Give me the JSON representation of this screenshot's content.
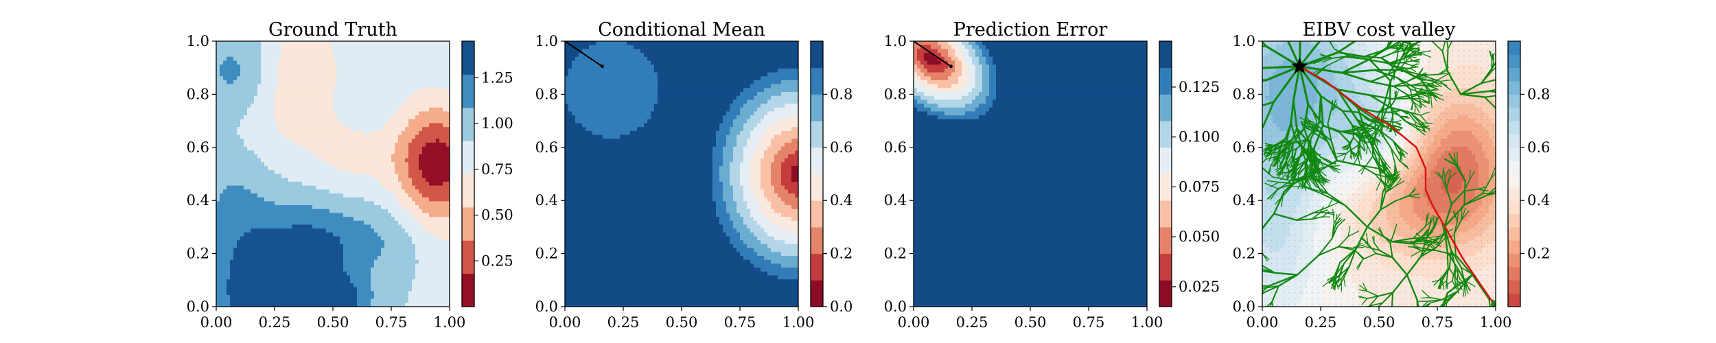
{
  "chart_data": [
    {
      "type": "heatmap",
      "title": "Ground Truth",
      "xlim": [
        0,
        1
      ],
      "ylim": [
        0,
        1
      ],
      "xticks": [
        "0.00",
        "0.25",
        "0.50",
        "0.75",
        "1.00"
      ],
      "yticks": [
        "0.0",
        "0.2",
        "0.4",
        "0.6",
        "0.8",
        "1.0"
      ],
      "colorbar": {
        "cmap": "RdBu",
        "range": [
          0.0,
          1.45
        ],
        "levels": 8,
        "ticks": [
          "0.25",
          "0.50",
          "0.75",
          "1.00",
          "1.25"
        ]
      },
      "features": [
        {
          "kind": "low-value peak",
          "x": 0.93,
          "y": 0.53,
          "min": 0.1
        },
        {
          "kind": "low-value ridge",
          "x": 0.35,
          "y": 0.85
        },
        {
          "kind": "high-value region",
          "x": 0.3,
          "y": 0.1
        }
      ]
    },
    {
      "type": "heatmap",
      "title": "Conditional Mean",
      "xlim": [
        0,
        1
      ],
      "ylim": [
        0,
        1
      ],
      "xticks": [
        "0.00",
        "0.25",
        "0.50",
        "0.75",
        "1.00"
      ],
      "yticks": [
        "0.0",
        "0.2",
        "0.4",
        "0.6",
        "0.8",
        "1.0"
      ],
      "colorbar": {
        "cmap": "RdBu",
        "range": [
          0.0,
          1.0
        ],
        "levels": 10,
        "ticks": [
          "0.0",
          "0.2",
          "0.4",
          "0.6",
          "0.8"
        ]
      },
      "path": {
        "x": [
          0.0,
          0.16
        ],
        "y": [
          1.0,
          0.905
        ]
      }
    },
    {
      "type": "heatmap",
      "title": "Prediction Error",
      "xlim": [
        0,
        1
      ],
      "ylim": [
        0,
        1
      ],
      "xticks": [
        "0.00",
        "0.25",
        "0.50",
        "0.75",
        "1.00"
      ],
      "yticks": [
        "0.0",
        "0.2",
        "0.4",
        "0.6",
        "0.8",
        "1.0"
      ],
      "colorbar": {
        "cmap": "RdBu",
        "range": [
          0.015,
          0.148
        ],
        "levels": 10,
        "ticks": [
          "0.025",
          "0.050",
          "0.075",
          "0.100",
          "0.125"
        ]
      },
      "path": {
        "x": [
          0.0,
          0.16
        ],
        "y": [
          1.0,
          0.905
        ]
      }
    },
    {
      "type": "heatmap",
      "title": "EIBV cost valley",
      "xlim": [
        0,
        1
      ],
      "ylim": [
        0,
        1
      ],
      "xticks": [
        "0.00",
        "0.25",
        "0.50",
        "0.75",
        "1.00"
      ],
      "yticks": [
        "0.0",
        "0.2",
        "0.4",
        "0.6",
        "0.8",
        "1.0"
      ],
      "colorbar": {
        "cmap": "RdBu",
        "range": [
          0.0,
          1.0
        ],
        "levels": 20,
        "ticks": [
          "0.2",
          "0.4",
          "0.6",
          "0.8"
        ]
      },
      "start_marker": {
        "x": 0.16,
        "y": 0.905
      },
      "goal": {
        "x": 1.0,
        "y": 0.0
      },
      "path": {
        "x": [
          0.16,
          0.27,
          0.42,
          0.55,
          0.66,
          0.7,
          0.7,
          0.73,
          0.77,
          0.86,
          1.0
        ],
        "y": [
          0.905,
          0.85,
          0.75,
          0.68,
          0.6,
          0.52,
          0.44,
          0.38,
          0.32,
          0.18,
          0.0
        ]
      },
      "colors": {
        "tree": "#118811",
        "path": "#dd1111"
      }
    }
  ]
}
